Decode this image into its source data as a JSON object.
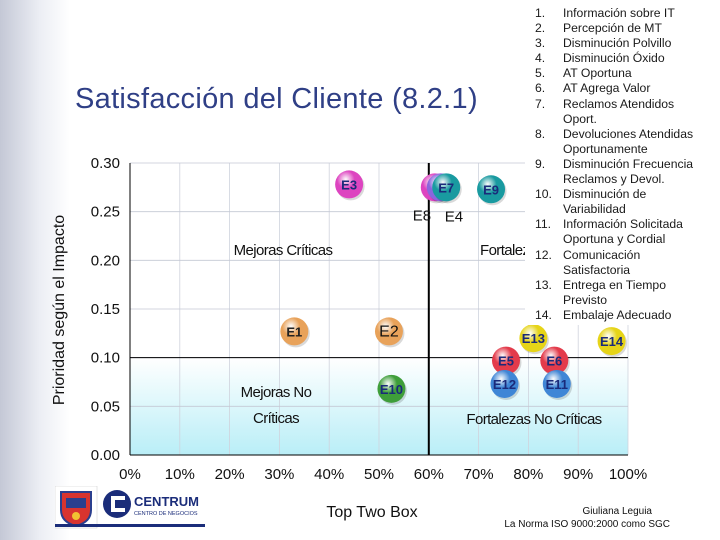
{
  "slide": {
    "title": "Satisfacción del Cliente (8.2.1)"
  },
  "legend": {
    "items": [
      {
        "num": "1.",
        "text": "Información sobre IT"
      },
      {
        "num": "2.",
        "text": "Percepción de MT"
      },
      {
        "num": "3.",
        "text": "Disminución Polvillo"
      },
      {
        "num": "4.",
        "text": "Disminución Óxido"
      },
      {
        "num": "5.",
        "text": "AT Oportuna"
      },
      {
        "num": "6.",
        "text": "AT Agrega Valor"
      },
      {
        "num": "7.",
        "text": "Reclamos Atendidos"
      },
      {
        "num": "",
        "text": "Oport."
      },
      {
        "num": "8.",
        "text": "Devoluciones Atendidas"
      },
      {
        "num": "",
        "text": "Oportunamente"
      },
      {
        "num": "9.",
        "text": "Disminución Frecuencia"
      },
      {
        "num": "",
        "text": "Reclamos y Devol."
      },
      {
        "num": "10.",
        "text": "Disminución de"
      },
      {
        "num": "",
        "text": "Variabilidad"
      },
      {
        "num": "11.",
        "text": "Información Solicitada"
      },
      {
        "num": "",
        "text": "Oportuna y Cordial"
      },
      {
        "num": "12.",
        "text": "Comunicación"
      },
      {
        "num": "",
        "text": "Satisfactoria"
      },
      {
        "num": "13.",
        "text": "Entrega en Tiempo"
      },
      {
        "num": "",
        "text": "Previsto"
      },
      {
        "num": "14.",
        "text": "Embalaje Adecuado"
      }
    ]
  },
  "logos": {
    "institution_text": "CENTRUM",
    "institution_sub": "CENTRO DE NEGOCIOS"
  },
  "footer": {
    "author": "Giuliana Leguia",
    "subtitle": "La Norma ISO 9000:2000 como SGC"
  },
  "chart_data": {
    "type": "scatter",
    "title": "",
    "xlabel": "Top Two Box",
    "ylabel": "Prioridad según el Impacto",
    "xlim": [
      0,
      1.0
    ],
    "ylim": [
      0,
      0.3
    ],
    "x_ticks": [
      "0%",
      "10%",
      "20%",
      "30%",
      "40%",
      "50%",
      "60%",
      "70%",
      "80%",
      "90%",
      "100%"
    ],
    "y_ticks": [
      "0.00",
      "0.05",
      "0.10",
      "0.15",
      "0.20",
      "0.25",
      "0.30"
    ],
    "x_threshold": 0.6,
    "y_threshold": 0.1,
    "grid": true,
    "quadrants": [
      {
        "label": "Mejoras Críticas",
        "region": "top-left"
      },
      {
        "label": "Fortalezas Críticas",
        "region": "top-right"
      },
      {
        "label_line1": "Mejoras No",
        "label_line2": "Críticas",
        "region": "bottom-left"
      },
      {
        "label": "Fortalezas No Críticas",
        "region": "bottom-right"
      }
    ],
    "colors": {
      "pink": "#dd44c0",
      "purple": "#8a66dd",
      "teal": "#199aa0",
      "orange": "#e8a25a",
      "green": "#3e9e3a",
      "red": "#e33b4b",
      "blue": "#3f86d6",
      "yellow": "#e6d418"
    },
    "points": [
      {
        "label": "E1",
        "x": 0.33,
        "y": 0.127,
        "color": "orange"
      },
      {
        "label": "E2",
        "x": 0.52,
        "y": 0.127,
        "color": "orange"
      },
      {
        "label": "E3",
        "x": 0.44,
        "y": 0.278,
        "color": "pink"
      },
      {
        "label": "E4",
        "x": 0.624,
        "y": 0.275,
        "color": "purple"
      },
      {
        "label": "E5",
        "x": 0.755,
        "y": 0.097,
        "color": "red"
      },
      {
        "label": "E6",
        "x": 0.852,
        "y": 0.097,
        "color": "red"
      },
      {
        "label": "E7",
        "x": 0.635,
        "y": 0.275,
        "color": "teal"
      },
      {
        "label": "E8",
        "x": 0.612,
        "y": 0.275,
        "color": "pink"
      },
      {
        "label": "E9",
        "x": 0.725,
        "y": 0.273,
        "color": "teal"
      },
      {
        "label": "E10",
        "x": 0.525,
        "y": 0.068,
        "color": "green"
      },
      {
        "label": "E11",
        "x": 0.857,
        "y": 0.073,
        "color": "blue"
      },
      {
        "label": "E12",
        "x": 0.752,
        "y": 0.073,
        "color": "blue"
      },
      {
        "label": "E13",
        "x": 0.81,
        "y": 0.12,
        "color": "yellow"
      },
      {
        "label": "E14",
        "x": 0.967,
        "y": 0.117,
        "color": "yellow"
      }
    ]
  }
}
